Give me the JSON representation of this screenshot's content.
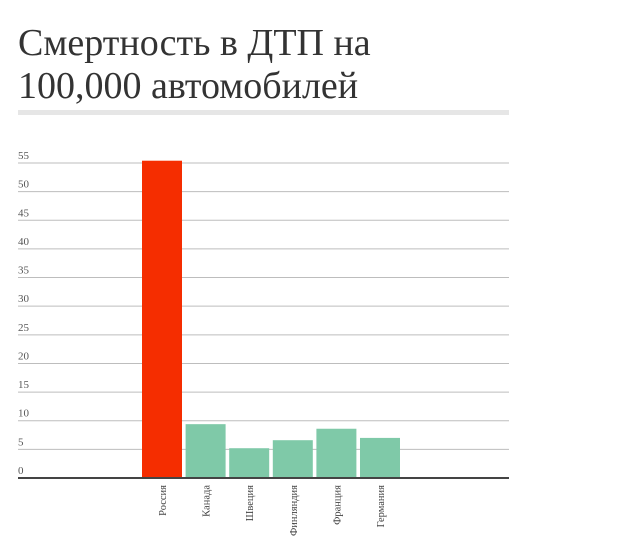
{
  "chart_data": {
    "type": "bar",
    "title": "Смертность в ДТП на 100,000 автомобилей",
    "xlabel": "",
    "ylabel": "",
    "categories": [
      "Россия",
      "Канада",
      "Швеция",
      "Финляндия",
      "Франция",
      "Германия"
    ],
    "values": [
      55.4,
      9.4,
      5.2,
      6.6,
      8.6,
      7.0
    ],
    "colors": [
      "#f52d00",
      "#7fc9a8",
      "#7fc9a8",
      "#7fc9a8",
      "#7fc9a8",
      "#7fc9a8"
    ],
    "ylim": [
      0,
      55
    ],
    "yticks": [
      0,
      5,
      10,
      15,
      20,
      25,
      30,
      35,
      40,
      45,
      50,
      55
    ],
    "grid": true,
    "legend": "none"
  }
}
